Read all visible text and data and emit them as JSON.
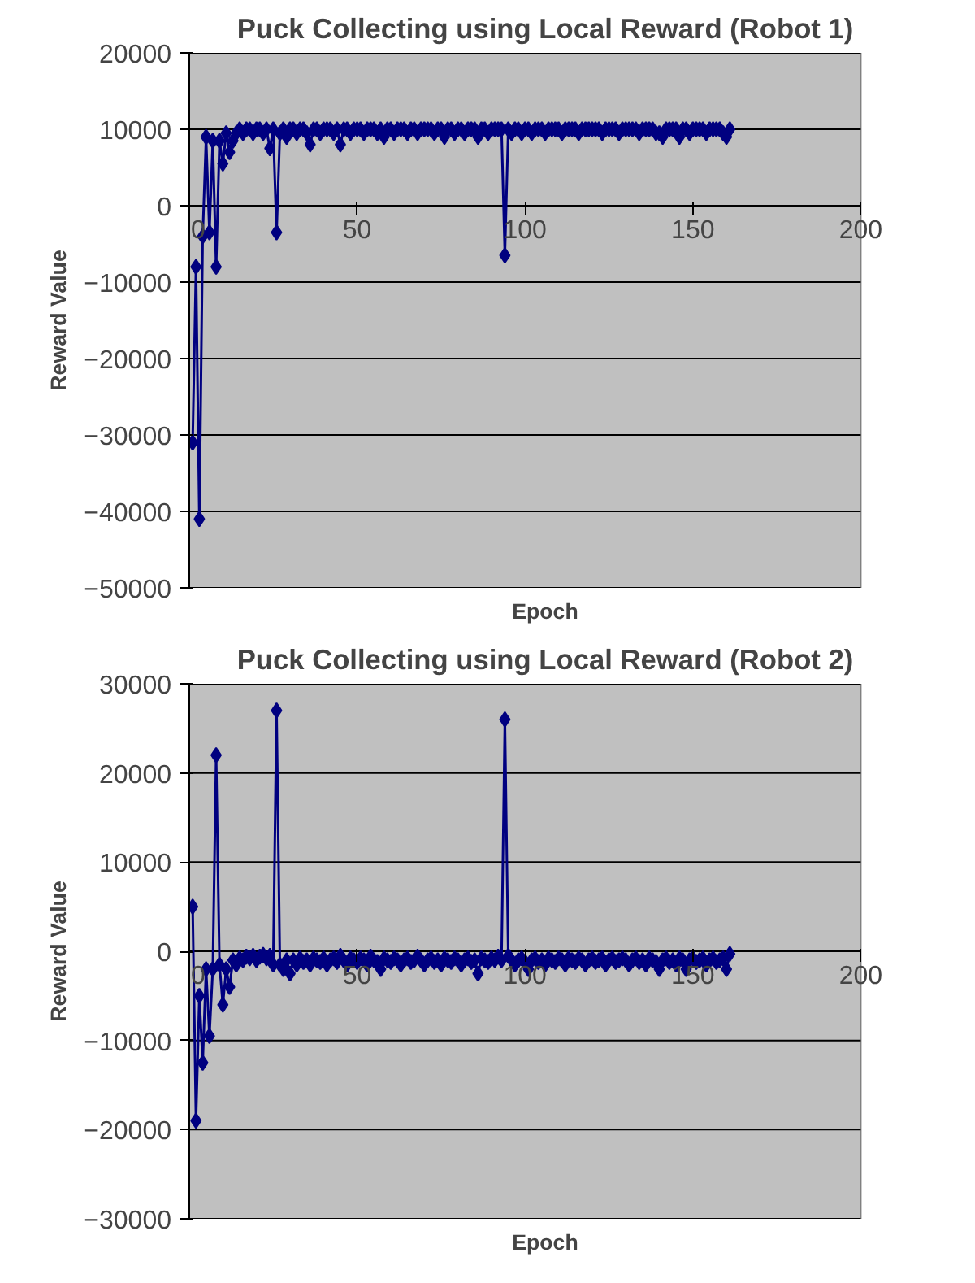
{
  "chart_data": [
    {
      "type": "line",
      "title": "Puck Collecting using Local Reward (Robot 1)",
      "xlabel": "Epoch",
      "ylabel": "Reward Value",
      "marker": "diamond",
      "grid": "y",
      "xlim": [
        0,
        200
      ],
      "xticks": [
        0,
        50,
        100,
        150,
        200
      ],
      "ylim": [
        -50000,
        20000
      ],
      "yticks": [
        -50000,
        -40000,
        -30000,
        -20000,
        -10000,
        0,
        10000,
        20000
      ],
      "x": [
        1,
        2,
        3,
        4,
        5,
        6,
        7,
        8,
        9,
        10,
        11,
        12,
        13,
        14,
        15,
        16,
        17,
        18,
        19,
        20,
        21,
        22,
        23,
        24,
        25,
        26,
        27,
        28,
        29,
        30,
        31,
        32,
        33,
        34,
        35,
        36,
        37,
        38,
        39,
        40,
        41,
        42,
        43,
        44,
        45,
        46,
        47,
        48,
        49,
        50,
        51,
        52,
        53,
        54,
        55,
        56,
        57,
        58,
        59,
        60,
        61,
        62,
        63,
        64,
        65,
        66,
        67,
        68,
        69,
        70,
        71,
        72,
        73,
        74,
        75,
        76,
        77,
        78,
        79,
        80,
        81,
        82,
        83,
        84,
        85,
        86,
        87,
        88,
        89,
        90,
        91,
        92,
        93,
        94,
        95,
        96,
        97,
        98,
        99,
        100,
        101,
        102,
        103,
        104,
        105,
        106,
        107,
        108,
        109,
        110,
        111,
        112,
        113,
        114,
        115,
        116,
        117,
        118,
        119,
        120,
        121,
        122,
        123,
        124,
        125,
        126,
        127,
        128,
        129,
        130,
        131,
        132,
        133,
        134,
        135,
        136,
        137,
        138,
        139,
        140,
        141,
        142,
        143,
        144,
        145,
        146,
        147,
        148,
        149,
        150,
        151,
        152,
        153,
        154,
        155,
        156,
        157,
        158,
        159,
        160,
        161
      ],
      "series": [
        {
          "color": "#000080",
          "values": [
            -31000,
            -8000,
            -41000,
            -4000,
            9000,
            -3500,
            8500,
            -8000,
            8500,
            5500,
            9500,
            7000,
            8500,
            9500,
            10000,
            9500,
            10000,
            10000,
            9500,
            10000,
            10000,
            9500,
            10000,
            7500,
            10000,
            -3500,
            9500,
            10000,
            9000,
            10000,
            10000,
            9500,
            10000,
            10000,
            9500,
            8000,
            10000,
            10000,
            9500,
            10000,
            10000,
            10000,
            9500,
            10000,
            8000,
            10000,
            10000,
            9500,
            10000,
            10000,
            10000,
            9500,
            10000,
            10000,
            10000,
            9500,
            10000,
            9000,
            10000,
            10000,
            9500,
            10000,
            10000,
            10000,
            9500,
            10000,
            10000,
            9500,
            10000,
            10000,
            10000,
            10000,
            9500,
            10000,
            10000,
            9000,
            10000,
            10000,
            9500,
            10000,
            10000,
            9500,
            10000,
            10000,
            10000,
            9000,
            10000,
            10000,
            9500,
            10000,
            10000,
            10000,
            10000,
            -6500,
            10000,
            9500,
            10000,
            10000,
            9500,
            10000,
            10000,
            9500,
            10000,
            10000,
            10000,
            9500,
            10000,
            10000,
            10000,
            10000,
            9500,
            10000,
            10000,
            10000,
            10000,
            9500,
            10000,
            10000,
            10000,
            10000,
            10000,
            10000,
            9500,
            10000,
            10000,
            10000,
            10000,
            9500,
            10000,
            10000,
            10000,
            10000,
            10000,
            9500,
            10000,
            10000,
            10000,
            10000,
            9500,
            9500,
            9000,
            10000,
            10000,
            10000,
            10000,
            9000,
            10000,
            10000,
            9500,
            10000,
            10000,
            10000,
            10000,
            9500,
            10000,
            10000,
            10000,
            10000,
            9500,
            9000,
            10000
          ]
        }
      ]
    },
    {
      "type": "line",
      "title": "Puck Collecting using Local Reward (Robot 2)",
      "xlabel": "Epoch",
      "ylabel": "Reward Value",
      "marker": "diamond",
      "grid": "y",
      "xlim": [
        0,
        200
      ],
      "xticks": [
        0,
        50,
        100,
        150,
        200
      ],
      "ylim": [
        -30000,
        30000
      ],
      "yticks": [
        -30000,
        -20000,
        -10000,
        0,
        10000,
        20000,
        30000
      ],
      "x": [
        1,
        2,
        3,
        4,
        5,
        6,
        7,
        8,
        9,
        10,
        11,
        12,
        13,
        14,
        15,
        16,
        17,
        18,
        19,
        20,
        21,
        22,
        23,
        24,
        25,
        26,
        27,
        28,
        29,
        30,
        31,
        32,
        33,
        34,
        35,
        36,
        37,
        38,
        39,
        40,
        41,
        42,
        43,
        44,
        45,
        46,
        47,
        48,
        49,
        50,
        51,
        52,
        53,
        54,
        55,
        56,
        57,
        58,
        59,
        60,
        61,
        62,
        63,
        64,
        65,
        66,
        67,
        68,
        69,
        70,
        71,
        72,
        73,
        74,
        75,
        76,
        77,
        78,
        79,
        80,
        81,
        82,
        83,
        84,
        85,
        86,
        87,
        88,
        89,
        90,
        91,
        92,
        93,
        94,
        95,
        96,
        97,
        98,
        99,
        100,
        101,
        102,
        103,
        104,
        105,
        106,
        107,
        108,
        109,
        110,
        111,
        112,
        113,
        114,
        115,
        116,
        117,
        118,
        119,
        120,
        121,
        122,
        123,
        124,
        125,
        126,
        127,
        128,
        129,
        130,
        131,
        132,
        133,
        134,
        135,
        136,
        137,
        138,
        139,
        140,
        141,
        142,
        143,
        144,
        145,
        146,
        147,
        148,
        149,
        150,
        151,
        152,
        153,
        154,
        155,
        156,
        157,
        158,
        159,
        160,
        161
      ],
      "series": [
        {
          "color": "#000080",
          "values": [
            5000,
            -19000,
            -5000,
            -12500,
            -2000,
            -9500,
            -2000,
            22000,
            -1500,
            -6000,
            -2000,
            -4000,
            -1000,
            -1500,
            -800,
            -1000,
            -600,
            -800,
            -500,
            -1000,
            -600,
            -400,
            -800,
            -500,
            -1500,
            27000,
            -1500,
            -2000,
            -1000,
            -2500,
            -1000,
            -1500,
            -800,
            -1200,
            -1000,
            -1500,
            -800,
            -1000,
            -1200,
            -800,
            -1500,
            -1000,
            -800,
            -1200,
            -500,
            -1000,
            -1500,
            -800,
            -1000,
            -1200,
            -800,
            -1000,
            -1500,
            -600,
            -1000,
            -1200,
            -2000,
            -800,
            -1000,
            -1200,
            -800,
            -1000,
            -1500,
            -1000,
            -800,
            -1200,
            -1000,
            -600,
            -1000,
            -1500,
            -1000,
            -800,
            -1200,
            -1000,
            -1500,
            -800,
            -1000,
            -1200,
            -800,
            -1000,
            -1500,
            -1000,
            -800,
            -1200,
            -1000,
            -2500,
            -800,
            -1000,
            -1200,
            -800,
            -1000,
            -600,
            -1000,
            26000,
            -500,
            -1000,
            -1500,
            -1000,
            -800,
            -1200,
            -2000,
            -1000,
            -800,
            -1200,
            -1000,
            -1500,
            -800,
            -1000,
            -1200,
            -800,
            -1000,
            -1500,
            -800,
            -1000,
            -1200,
            -800,
            -1000,
            -1500,
            -1000,
            -800,
            -1200,
            -1000,
            -800,
            -1500,
            -1000,
            -800,
            -1200,
            -1000,
            -800,
            -1000,
            -1500,
            -1000,
            -800,
            -1200,
            -1000,
            -1500,
            -800,
            -1000,
            -1200,
            -2000,
            -1000,
            -800,
            -1200,
            -1000,
            -1500,
            -800,
            -1000,
            -2000,
            -1000,
            -800,
            -1200,
            -1000,
            -800,
            -1500,
            -1000,
            -800,
            -1200,
            -1000,
            -800,
            -2000,
            -300
          ]
        }
      ]
    }
  ]
}
